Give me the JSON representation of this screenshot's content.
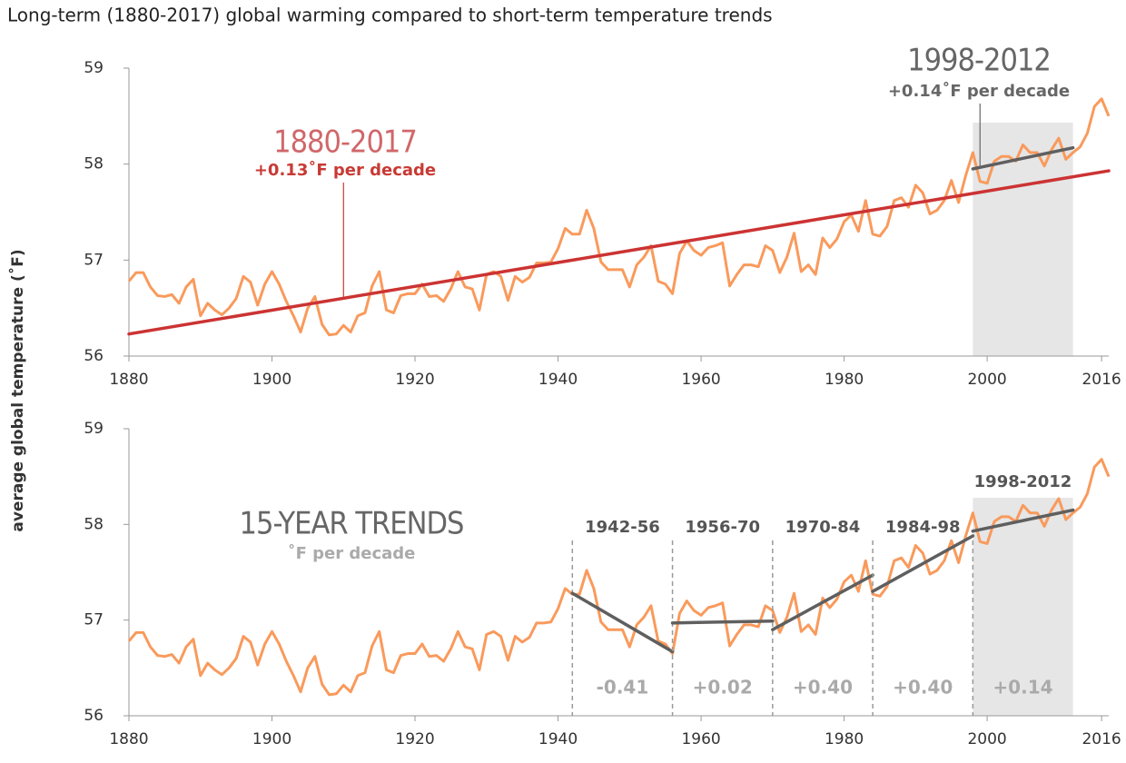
{
  "title": "Long-term (1880-2017) global warming compared to short-term temperature trends",
  "y_label": "average global temperature (˚F)",
  "chart_data": [
    {
      "type": "line",
      "x": [
        1880,
        1881,
        1882,
        1883,
        1884,
        1885,
        1886,
        1887,
        1888,
        1889,
        1890,
        1891,
        1892,
        1893,
        1894,
        1895,
        1896,
        1897,
        1898,
        1899,
        1900,
        1901,
        1902,
        1903,
        1904,
        1905,
        1906,
        1907,
        1908,
        1909,
        1910,
        1911,
        1912,
        1913,
        1914,
        1915,
        1916,
        1917,
        1918,
        1919,
        1920,
        1921,
        1922,
        1923,
        1924,
        1925,
        1926,
        1927,
        1928,
        1929,
        1930,
        1931,
        1932,
        1933,
        1934,
        1935,
        1936,
        1937,
        1938,
        1939,
        1940,
        1941,
        1942,
        1943,
        1944,
        1945,
        1946,
        1947,
        1948,
        1949,
        1950,
        1951,
        1952,
        1953,
        1954,
        1955,
        1956,
        1957,
        1958,
        1959,
        1960,
        1961,
        1962,
        1963,
        1964,
        1965,
        1966,
        1967,
        1968,
        1969,
        1970,
        1971,
        1972,
        1973,
        1974,
        1975,
        1976,
        1977,
        1978,
        1979,
        1980,
        1981,
        1982,
        1983,
        1984,
        1985,
        1986,
        1987,
        1988,
        1989,
        1990,
        1991,
        1992,
        1993,
        1994,
        1995,
        1996,
        1997,
        1998,
        1999,
        2000,
        2001,
        2002,
        2003,
        2004,
        2005,
        2006,
        2007,
        2008,
        2009,
        2010,
        2011,
        2012,
        2013,
        2014,
        2015,
        2016,
        2017
      ],
      "xlim": [
        1880,
        2017
      ],
      "xticks": [
        1880,
        1900,
        1920,
        1940,
        1960,
        1980,
        2000,
        2016
      ],
      "ylim": [
        56,
        59
      ],
      "yticks": [
        56,
        57,
        58,
        59
      ],
      "series": [
        {
          "color": "#f99a5c",
          "values": [
            56.78,
            56.87,
            56.87,
            56.72,
            56.63,
            56.62,
            56.64,
            56.55,
            56.72,
            56.8,
            56.42,
            56.55,
            56.48,
            56.43,
            56.5,
            56.6,
            56.83,
            56.77,
            56.53,
            56.75,
            56.88,
            56.75,
            56.57,
            56.42,
            56.25,
            56.5,
            56.62,
            56.33,
            56.22,
            56.23,
            56.32,
            56.25,
            56.42,
            56.45,
            56.73,
            56.88,
            56.48,
            56.45,
            56.63,
            56.65,
            56.65,
            56.75,
            56.62,
            56.63,
            56.57,
            56.7,
            56.88,
            56.72,
            56.7,
            56.48,
            56.85,
            56.88,
            56.83,
            56.58,
            56.83,
            56.77,
            56.82,
            56.97,
            56.97,
            56.98,
            57.12,
            57.33,
            57.27,
            57.27,
            57.52,
            57.33,
            56.98,
            56.9,
            56.9,
            56.9,
            56.72,
            56.95,
            57.03,
            57.15,
            56.78,
            56.75,
            56.65,
            57.07,
            57.2,
            57.1,
            57.05,
            57.13,
            57.15,
            57.18,
            56.73,
            56.85,
            56.95,
            56.95,
            56.93,
            57.15,
            57.1,
            56.87,
            57.03,
            57.28,
            56.88,
            56.95,
            56.85,
            57.23,
            57.13,
            57.22,
            57.4,
            57.47,
            57.3,
            57.62,
            57.27,
            57.25,
            57.35,
            57.62,
            57.65,
            57.55,
            57.78,
            57.7,
            57.48,
            57.52,
            57.62,
            57.83,
            57.6,
            57.88,
            58.12,
            57.82,
            57.8,
            58.03,
            58.08,
            58.08,
            58.03,
            58.2,
            58.12,
            58.12,
            57.98,
            58.15,
            58.27,
            58.05,
            58.12,
            58.18,
            58.32,
            58.6,
            58.68,
            58.5
          ]
        }
      ],
      "highlight": [
        1998,
        2012
      ],
      "trends": [
        {
          "label": "1880-2017",
          "start": 1880,
          "end": 2017,
          "y_start": 56.23,
          "y_end": 57.93,
          "color": "#cc3333",
          "rate": "+0.13˚F per decade"
        },
        {
          "label": "1998-2012",
          "start": 1998,
          "end": 2012,
          "y_start": 57.95,
          "y_end": 58.17,
          "color": "#5f5f5f",
          "rate": "+0.14˚F per decade"
        }
      ]
    },
    {
      "type": "line",
      "x": [
        1880,
        1881,
        1882,
        1883,
        1884,
        1885,
        1886,
        1887,
        1888,
        1889,
        1890,
        1891,
        1892,
        1893,
        1894,
        1895,
        1896,
        1897,
        1898,
        1899,
        1900,
        1901,
        1902,
        1903,
        1904,
        1905,
        1906,
        1907,
        1908,
        1909,
        1910,
        1911,
        1912,
        1913,
        1914,
        1915,
        1916,
        1917,
        1918,
        1919,
        1920,
        1921,
        1922,
        1923,
        1924,
        1925,
        1926,
        1927,
        1928,
        1929,
        1930,
        1931,
        1932,
        1933,
        1934,
        1935,
        1936,
        1937,
        1938,
        1939,
        1940,
        1941,
        1942,
        1943,
        1944,
        1945,
        1946,
        1947,
        1948,
        1949,
        1950,
        1951,
        1952,
        1953,
        1954,
        1955,
        1956,
        1957,
        1958,
        1959,
        1960,
        1961,
        1962,
        1963,
        1964,
        1965,
        1966,
        1967,
        1968,
        1969,
        1970,
        1971,
        1972,
        1973,
        1974,
        1975,
        1976,
        1977,
        1978,
        1979,
        1980,
        1981,
        1982,
        1983,
        1984,
        1985,
        1986,
        1987,
        1988,
        1989,
        1990,
        1991,
        1992,
        1993,
        1994,
        1995,
        1996,
        1997,
        1998,
        1999,
        2000,
        2001,
        2002,
        2003,
        2004,
        2005,
        2006,
        2007,
        2008,
        2009,
        2010,
        2011,
        2012,
        2013,
        2014,
        2015,
        2016,
        2017
      ],
      "xlim": [
        1880,
        2017
      ],
      "xticks": [
        1880,
        1900,
        1920,
        1940,
        1960,
        1980,
        2000,
        2016
      ],
      "ylim": [
        56,
        59
      ],
      "yticks": [
        56,
        57,
        58,
        59
      ],
      "series": [
        {
          "color": "#f99a5c",
          "values": [
            56.78,
            56.87,
            56.87,
            56.72,
            56.63,
            56.62,
            56.64,
            56.55,
            56.72,
            56.8,
            56.42,
            56.55,
            56.48,
            56.43,
            56.5,
            56.6,
            56.83,
            56.77,
            56.53,
            56.75,
            56.88,
            56.75,
            56.57,
            56.42,
            56.25,
            56.5,
            56.62,
            56.33,
            56.22,
            56.23,
            56.32,
            56.25,
            56.42,
            56.45,
            56.73,
            56.88,
            56.48,
            56.45,
            56.63,
            56.65,
            56.65,
            56.75,
            56.62,
            56.63,
            56.57,
            56.7,
            56.88,
            56.72,
            56.7,
            56.48,
            56.85,
            56.88,
            56.83,
            56.58,
            56.83,
            56.77,
            56.82,
            56.97,
            56.97,
            56.98,
            57.12,
            57.33,
            57.27,
            57.27,
            57.52,
            57.33,
            56.98,
            56.9,
            56.9,
            56.9,
            56.72,
            56.95,
            57.03,
            57.15,
            56.78,
            56.75,
            56.65,
            57.07,
            57.2,
            57.1,
            57.05,
            57.13,
            57.15,
            57.18,
            56.73,
            56.85,
            56.95,
            56.95,
            56.93,
            57.15,
            57.1,
            56.87,
            57.03,
            57.28,
            56.88,
            56.95,
            56.85,
            57.23,
            57.13,
            57.22,
            57.4,
            57.47,
            57.3,
            57.62,
            57.27,
            57.25,
            57.35,
            57.62,
            57.65,
            57.55,
            57.78,
            57.7,
            57.48,
            57.52,
            57.62,
            57.83,
            57.6,
            57.88,
            58.12,
            57.82,
            57.8,
            58.03,
            58.08,
            58.08,
            58.03,
            58.2,
            58.12,
            58.12,
            57.98,
            58.15,
            58.27,
            58.05,
            58.12,
            58.18,
            58.32,
            58.6,
            58.68,
            58.5
          ]
        }
      ],
      "highlight": [
        1998,
        2012
      ],
      "heading": "15-YEAR TRENDS",
      "subheading": "˚F per decade",
      "trends": [
        {
          "label": "1942-56",
          "start": 1942,
          "end": 1956,
          "y_start": 57.28,
          "y_end": 56.67,
          "color": "#5f5f5f",
          "rate": "-0.41"
        },
        {
          "label": "1956-70",
          "start": 1956,
          "end": 1970,
          "y_start": 56.97,
          "y_end": 56.99,
          "color": "#5f5f5f",
          "rate": "+0.02"
        },
        {
          "label": "1970-84",
          "start": 1970,
          "end": 1984,
          "y_start": 56.9,
          "y_end": 57.47,
          "color": "#5f5f5f",
          "rate": "+0.40"
        },
        {
          "label": "1984-98",
          "start": 1984,
          "end": 1998,
          "y_start": 57.3,
          "y_end": 57.88,
          "color": "#5f5f5f",
          "rate": "+0.40"
        },
        {
          "label": "1998-2012",
          "start": 1998,
          "end": 2012,
          "y_start": 57.93,
          "y_end": 58.15,
          "color": "#5f5f5f",
          "rate": "+0.14"
        }
      ]
    }
  ]
}
